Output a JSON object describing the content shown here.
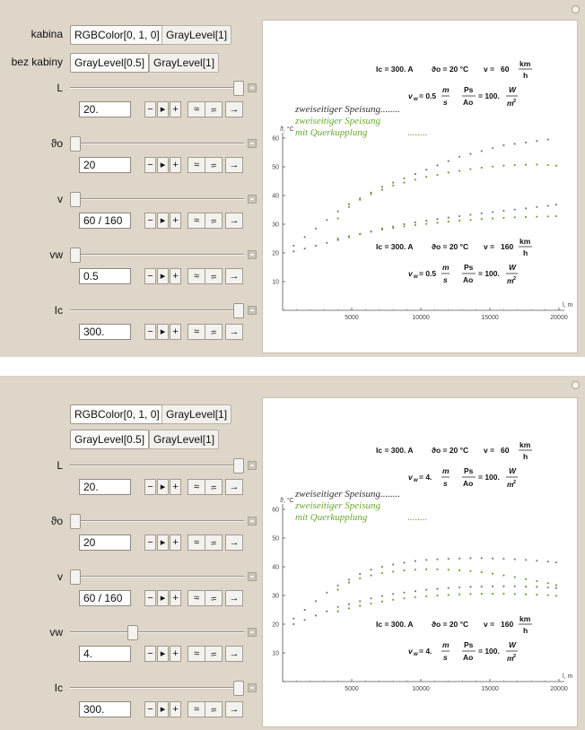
{
  "controls": {
    "kabina_label": "kabina",
    "bez_kabiny_label": "bez kabiny",
    "rgb_button": "RGBColor[0, 1, 0]",
    "gray05_button": "GrayLevel[0.5]",
    "gray1_button": "GrayLevel[1]",
    "param_labels": [
      "L",
      "ϑo",
      "v",
      "vw",
      "Ic"
    ],
    "step_glyphs": [
      "−",
      "▸",
      "+",
      "≈",
      "≈",
      "→"
    ]
  },
  "panel1": {
    "values": {
      "L": "20.",
      "theta_o": "20",
      "v": "60 / 160",
      "vw": "0.5",
      "Ic": "300."
    },
    "slider_levels": {
      "L": 1.0,
      "theta_o": 0.0,
      "v": 0.0,
      "vw": 0.0,
      "Ic": 1.0
    }
  },
  "panel2": {
    "values": {
      "L": "20.",
      "theta_o": "20",
      "v": "60 / 160",
      "vw": "4.",
      "Ic": "300."
    },
    "slider_levels": {
      "L": 1.0,
      "theta_o": 0.0,
      "v": 0.0,
      "vw": 0.35,
      "Ic": 1.0
    }
  },
  "plot_text": {
    "ic": "Ic =  300.  A",
    "theta": "ϑo = 20 °C",
    "v_prefix": "v =",
    "v1": "60",
    "v2": "160",
    "km": "km",
    "h": "h",
    "vw_prefix": "v",
    "vw_sub": "w",
    "vw1": "= 0.5",
    "vw2": "= 4.",
    "m": "m",
    "s": "s",
    "ps": "Ps",
    "ao": "Ao",
    "eq100": "= 100.",
    "W": "W",
    "m2": "m",
    "sq": "2",
    "legend1": "zweiseitiger Speisung........",
    "legend2": "zweiseitiger Speisung",
    "legend3": "mit Querkupplung",
    "legend3_dots": "........",
    "ylabel": "ϑ, °C",
    "xlabel": "l, m"
  },
  "colors": {
    "gray_series": "#7d7d7d",
    "green_series": "#6aa630",
    "panel_bg": "#ddd6c9"
  },
  "chart_data": [
    {
      "type": "scatter",
      "xlabel": "l, m",
      "ylabel": "ϑ, °C",
      "xlim": [
        0,
        20000
      ],
      "ylim": [
        0,
        60
      ],
      "xticks": [
        5000,
        10000,
        15000,
        20000
      ],
      "xtick_labels": [
        "5000",
        "10000",
        "15000",
        "20000"
      ],
      "yticks": [
        0,
        10,
        20,
        30,
        40,
        50,
        60
      ],
      "series": [
        {
          "name": "zweiseitiger Speisung",
          "color": "gray",
          "x": [
            800,
            1600,
            2400,
            3200,
            4000,
            4800,
            5600,
            6400,
            7200,
            8000,
            8800,
            9600,
            10400,
            11200,
            12000,
            12800,
            13600,
            14400,
            15200,
            16000,
            16800,
            17600,
            18400,
            19200
          ],
          "y": [
            22.5,
            25.5,
            28.5,
            31.5,
            34.5,
            37,
            39,
            41,
            43,
            44.5,
            46,
            47.5,
            49,
            50.5,
            52,
            53.5,
            54.5,
            55.5,
            56.5,
            57.5,
            58,
            58.5,
            59,
            59.5
          ]
        },
        {
          "name": "zweiseitiger Speisung",
          "color": "gray",
          "x": [
            800,
            1600,
            2400,
            3200,
            4000,
            4800,
            5600,
            6400,
            7200,
            8000,
            8800,
            9600,
            10400,
            11200,
            12000,
            12800,
            13600,
            14400,
            15200,
            16000,
            16800,
            17600,
            18400,
            19200,
            19800
          ],
          "y": [
            20.5,
            21.5,
            22.5,
            23.5,
            24.5,
            25.5,
            26.5,
            27.5,
            28.5,
            29.2,
            30,
            30.6,
            31.2,
            31.8,
            32.3,
            32.8,
            33.3,
            33.8,
            34.2,
            34.7,
            35.1,
            35.5,
            36,
            36.4,
            36.8
          ]
        },
        {
          "name": "zweiseitiger Speisung mit Querkupplung",
          "color": "green",
          "x": [
            4000,
            4800,
            5600,
            6400,
            7200,
            8000,
            8800,
            9600,
            10400,
            11200,
            12000,
            12800,
            13600,
            14400,
            15200,
            16000,
            16800,
            17600,
            18400,
            19200,
            19800
          ],
          "y": [
            32,
            36,
            38.5,
            40.5,
            42,
            43.5,
            44.5,
            45.5,
            46.5,
            47.2,
            48,
            48.6,
            49.2,
            49.7,
            50.1,
            50.4,
            50.6,
            50.7,
            50.8,
            50.6,
            50.4
          ]
        },
        {
          "name": "zweiseitiger Speisung mit Querkupplung",
          "color": "green",
          "x": [
            4000,
            4800,
            5600,
            6400,
            7200,
            8000,
            8800,
            9600,
            10400,
            11200,
            12000,
            12800,
            13600,
            14400,
            15200,
            16000,
            16800,
            17600,
            18400,
            19200,
            19800
          ],
          "y": [
            25,
            25.8,
            26.6,
            27.4,
            28.1,
            28.7,
            29.2,
            29.7,
            30.1,
            30.5,
            30.9,
            31.2,
            31.5,
            31.8,
            32,
            32.2,
            32.4,
            32.5,
            32.6,
            32.7,
            32.8
          ]
        }
      ]
    },
    {
      "type": "scatter",
      "xlabel": "l, m",
      "ylabel": "ϑ, °C",
      "xlim": [
        0,
        20000
      ],
      "ylim": [
        0,
        60
      ],
      "xticks": [
        5000,
        10000,
        15000,
        20000
      ],
      "xtick_labels": [
        "5000",
        "10000",
        "15000",
        "20000"
      ],
      "yticks": [
        0,
        10,
        20,
        30,
        40,
        50,
        60
      ],
      "series": [
        {
          "name": "zweiseitiger Speisung",
          "color": "gray",
          "x": [
            800,
            1600,
            2400,
            3200,
            4000,
            4800,
            5600,
            6400,
            7200,
            8000,
            8800,
            9600,
            10400,
            11200,
            12000,
            12800,
            13600,
            14400,
            15200,
            16000,
            16800,
            17600,
            18400,
            19200,
            19800
          ],
          "y": [
            22,
            25,
            28,
            31,
            33.5,
            35.5,
            37.5,
            39,
            40,
            40.8,
            41.4,
            42,
            42.4,
            42.6,
            42.8,
            42.9,
            43,
            43,
            42.9,
            42.8,
            42.6,
            42.4,
            42.1,
            41.8,
            41.5
          ]
        },
        {
          "name": "zweiseitiger Speisung",
          "color": "gray",
          "x": [
            800,
            1600,
            2400,
            3200,
            4000,
            4800,
            5600,
            6400,
            7200,
            8000,
            8800,
            9600,
            10400,
            11200,
            12000,
            12800,
            13600,
            14400,
            15200,
            16000,
            16800,
            17600,
            18400,
            19200,
            19800
          ],
          "y": [
            20,
            21.5,
            23,
            24.5,
            26,
            27,
            28,
            29,
            29.8,
            30.5,
            31,
            31.5,
            32,
            32.3,
            32.6,
            32.8,
            33,
            33.1,
            33.2,
            33.2,
            33.2,
            33.1,
            33,
            32.8,
            32.6
          ]
        },
        {
          "name": "zweiseitiger Speisung mit Querkupplung",
          "color": "green",
          "x": [
            4000,
            4800,
            5600,
            6400,
            7200,
            8000,
            8800,
            9600,
            10400,
            11200,
            12000,
            12800,
            13600,
            14400,
            15200,
            16000,
            16800,
            17600,
            18400,
            19200,
            19800
          ],
          "y": [
            32,
            34.5,
            36,
            37,
            37.8,
            38.3,
            38.7,
            39,
            39.1,
            39.1,
            39,
            38.8,
            38.5,
            38.1,
            37.6,
            37,
            36.4,
            35.7,
            35,
            34.3,
            33.6
          ]
        },
        {
          "name": "zweiseitiger Speisung mit Querkupplung",
          "color": "green",
          "x": [
            4000,
            4800,
            5600,
            6400,
            7200,
            8000,
            8800,
            9600,
            10400,
            11200,
            12000,
            12800,
            13600,
            14400,
            15200,
            16000,
            16800,
            17600,
            18400,
            19200,
            19800
          ],
          "y": [
            24.5,
            25.5,
            26.4,
            27.2,
            27.9,
            28.5,
            29,
            29.4,
            29.7,
            30,
            30.2,
            30.4,
            30.5,
            30.6,
            30.6,
            30.6,
            30.5,
            30.4,
            30.3,
            30.1,
            29.9
          ]
        }
      ]
    }
  ]
}
